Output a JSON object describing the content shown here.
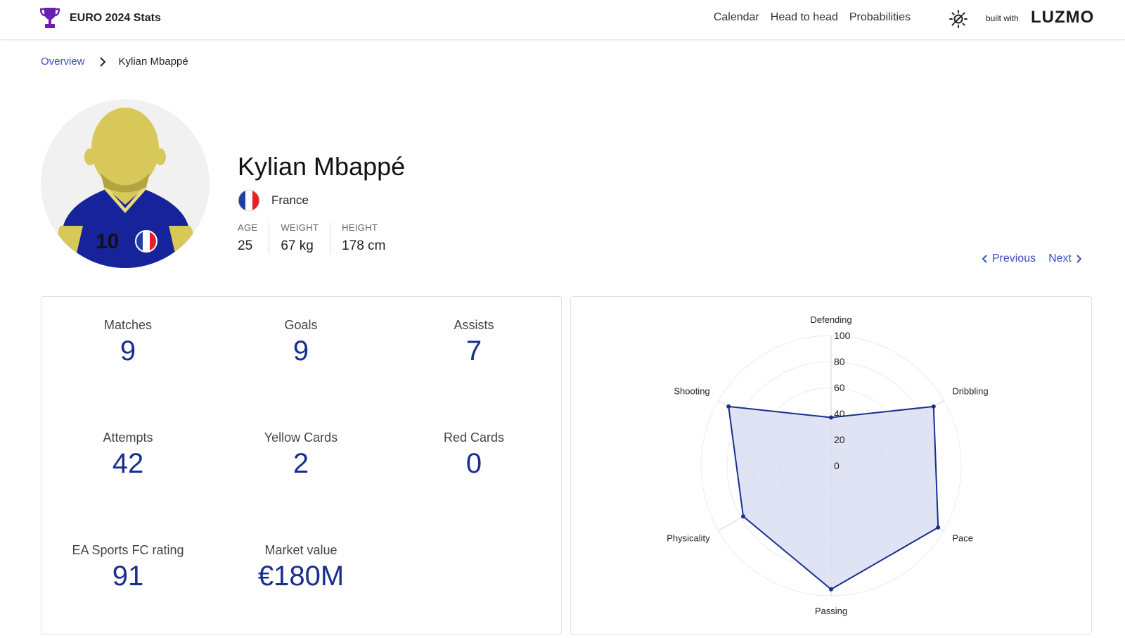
{
  "header": {
    "title": "EURO 2024 Stats",
    "logo_icon": "trophy-icon",
    "nav": [
      "Calendar",
      "Head to head",
      "Probabilities"
    ],
    "theme_icon": "sun-icon",
    "built_with": "built with",
    "brand": "LUZMO"
  },
  "breadcrumb": {
    "root": "Overview",
    "current": "Kylian Mbappé"
  },
  "player": {
    "name": "Kylian Mbappé",
    "country": "France",
    "shirt_number": "10",
    "attributes": [
      {
        "label": "AGE",
        "value": "25"
      },
      {
        "label": "WEIGHT",
        "value": "67 kg"
      },
      {
        "label": "HEIGHT",
        "value": "178 cm"
      }
    ]
  },
  "pager": {
    "previous": "Previous",
    "next": "Next"
  },
  "stats": [
    {
      "label": "Matches",
      "value": "9"
    },
    {
      "label": "Goals",
      "value": "9"
    },
    {
      "label": "Assists",
      "value": "7"
    },
    {
      "label": "Attempts",
      "value": "42"
    },
    {
      "label": "Yellow Cards",
      "value": "2"
    },
    {
      "label": "Red Cards",
      "value": "0"
    },
    {
      "label": "EA Sports FC rating",
      "value": "91"
    },
    {
      "label": "Market value",
      "value": "€180M"
    }
  ],
  "colors": {
    "accent": "#1a2e8f",
    "link": "#3b4dbf",
    "trophy": "#6a1fb0",
    "radar_fill": "#d9def2",
    "avatar_skin": "#d8c85a",
    "avatar_shirt": "#16239b"
  },
  "chart_data": {
    "type": "radar",
    "axes": [
      "Defending",
      "Dribbling",
      "Pace",
      "Passing",
      "Physicality",
      "Shooting"
    ],
    "values": [
      37,
      91,
      95,
      95,
      78,
      91
    ],
    "ticks": [
      "0",
      "20",
      "40",
      "60",
      "80",
      "100"
    ],
    "range": [
      0,
      100
    ]
  }
}
